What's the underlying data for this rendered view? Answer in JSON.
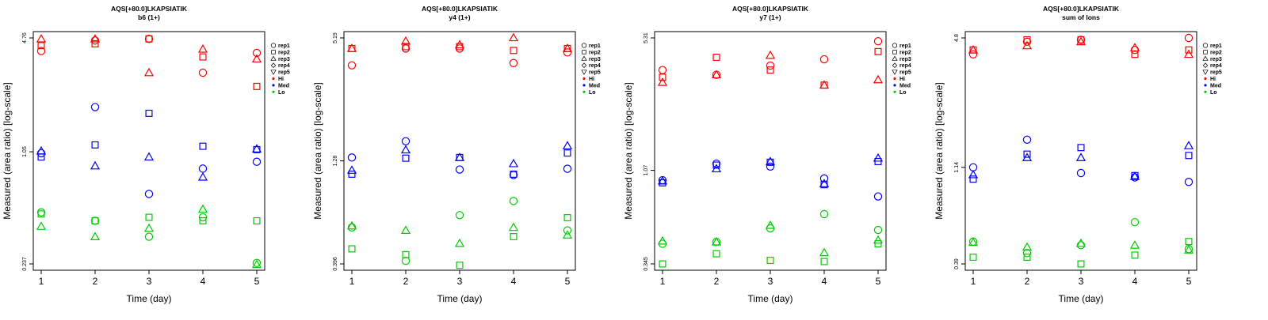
{
  "colors": {
    "Hi": "#ff0000",
    "Med": "#0000ff",
    "Lo": "#00cc00"
  },
  "legend": {
    "entries": [
      {
        "label": "rep1",
        "marker": "circle"
      },
      {
        "label": "rep2",
        "marker": "square"
      },
      {
        "label": "rep3",
        "marker": "triangle-up"
      },
      {
        "label": "rep4",
        "marker": "diamond"
      },
      {
        "label": "rep5",
        "marker": "triangle-down"
      },
      {
        "label": "Hi",
        "marker": "dot",
        "color": "#ff0000"
      },
      {
        "label": "Med",
        "marker": "dot",
        "color": "#0000ff"
      },
      {
        "label": "Lo",
        "marker": "dot",
        "color": "#00cc00"
      }
    ]
  },
  "chart_data": [
    {
      "type": "scatter",
      "title": "AQS[+80.0]LKAPSIATIK",
      "subtitle": "b6 (1+)",
      "xlabel": "Time (day)",
      "ylabel": "Measured (area ratio) [log-scale]",
      "x_ticks": [
        1,
        2,
        3,
        4,
        5
      ],
      "y_scale": "log",
      "y_ticks": [
        0.237,
        1.05,
        4.76
      ],
      "ylim": [
        0.237,
        4.76
      ],
      "grid": false,
      "legend_position": "right",
      "series": [
        {
          "name": "rep1",
          "group": "Hi",
          "marker": "circle",
          "x": [
            1,
            2,
            3,
            4,
            5
          ],
          "y": [
            4.0,
            4.6,
            4.7,
            3.0,
            3.9
          ]
        },
        {
          "name": "rep2",
          "group": "Hi",
          "marker": "square",
          "x": [
            1,
            2,
            3,
            4,
            5
          ],
          "y": [
            4.3,
            4.4,
            4.7,
            3.7,
            2.5
          ]
        },
        {
          "name": "rep3",
          "group": "Hi",
          "marker": "triangle-up",
          "x": [
            1,
            2,
            3,
            4,
            5
          ],
          "y": [
            4.7,
            4.7,
            3.0,
            4.1,
            3.6
          ]
        },
        {
          "name": "rep1",
          "group": "Med",
          "marker": "circle",
          "x": [
            1,
            2,
            3,
            4,
            5
          ],
          "y": [
            1.03,
            1.9,
            0.6,
            0.84,
            0.92
          ]
        },
        {
          "name": "rep2",
          "group": "Med",
          "marker": "square",
          "x": [
            1,
            2,
            3,
            4,
            5
          ],
          "y": [
            0.98,
            1.15,
            1.75,
            1.13,
            1.08
          ]
        },
        {
          "name": "rep3",
          "group": "Med",
          "marker": "triangle-up",
          "x": [
            1,
            2,
            3,
            4,
            5
          ],
          "y": [
            1.06,
            0.87,
            0.98,
            0.75,
            1.09
          ]
        },
        {
          "name": "rep1",
          "group": "Lo",
          "marker": "circle",
          "x": [
            1,
            2,
            3,
            4,
            5
          ],
          "y": [
            0.47,
            0.42,
            0.34,
            0.44,
            0.24
          ]
        },
        {
          "name": "rep2",
          "group": "Lo",
          "marker": "square",
          "x": [
            1,
            2,
            3,
            4,
            5
          ],
          "y": [
            0.46,
            0.42,
            0.44,
            0.42,
            0.42
          ]
        },
        {
          "name": "rep3",
          "group": "Lo",
          "marker": "triangle-up",
          "x": [
            1,
            2,
            3,
            4,
            5
          ],
          "y": [
            0.39,
            0.34,
            0.38,
            0.49,
            0.235
          ]
        }
      ]
    },
    {
      "type": "scatter",
      "title": "AQS[+80.0]LKAPSIATIK",
      "subtitle": "y4 (1+)",
      "xlabel": "Time (day)",
      "ylabel": "Measured (area ratio) [log-scale]",
      "x_ticks": [
        1,
        2,
        3,
        4,
        5
      ],
      "y_scale": "log",
      "y_ticks": [
        0.396,
        1.28,
        5.19
      ],
      "ylim": [
        0.396,
        5.19
      ],
      "grid": false,
      "legend_position": "right",
      "series": [
        {
          "name": "rep1",
          "group": "Hi",
          "marker": "circle",
          "x": [
            1,
            2,
            3,
            4,
            5
          ],
          "y": [
            3.8,
            4.6,
            4.6,
            3.9,
            4.4
          ]
        },
        {
          "name": "rep2",
          "group": "Hi",
          "marker": "square",
          "x": [
            1,
            2,
            3,
            4,
            5
          ],
          "y": [
            4.6,
            4.7,
            4.7,
            4.5,
            4.6
          ]
        },
        {
          "name": "rep3",
          "group": "Hi",
          "marker": "triangle-up",
          "x": [
            1,
            2,
            3,
            4,
            5
          ],
          "y": [
            4.6,
            5.0,
            4.8,
            5.2,
            4.6
          ]
        },
        {
          "name": "rep1",
          "group": "Med",
          "marker": "circle",
          "x": [
            1,
            2,
            3,
            4,
            5
          ],
          "y": [
            1.33,
            1.6,
            1.16,
            1.09,
            1.17
          ]
        },
        {
          "name": "rep2",
          "group": "Med",
          "marker": "square",
          "x": [
            1,
            2,
            3,
            4,
            5
          ],
          "y": [
            1.1,
            1.32,
            1.33,
            1.1,
            1.4
          ]
        },
        {
          "name": "rep3",
          "group": "Med",
          "marker": "triangle-up",
          "x": [
            1,
            2,
            3,
            4,
            5
          ],
          "y": [
            1.15,
            1.45,
            1.33,
            1.24,
            1.52
          ]
        },
        {
          "name": "rep1",
          "group": "Lo",
          "marker": "circle",
          "x": [
            1,
            2,
            3,
            4,
            5
          ],
          "y": [
            0.6,
            0.41,
            0.69,
            0.81,
            0.58
          ]
        },
        {
          "name": "rep2",
          "group": "Lo",
          "marker": "square",
          "x": [
            1,
            2,
            3,
            4,
            5
          ],
          "y": [
            0.47,
            0.44,
            0.39,
            0.54,
            0.67
          ]
        },
        {
          "name": "rep3",
          "group": "Lo",
          "marker": "triangle-up",
          "x": [
            1,
            2,
            3,
            4,
            5
          ],
          "y": [
            0.61,
            0.58,
            0.5,
            0.6,
            0.55
          ]
        }
      ]
    },
    {
      "type": "scatter",
      "title": "AQS[+80.0]LKAPSIATIK",
      "subtitle": "y7 (1+)",
      "xlabel": "Time (day)",
      "ylabel": "Measured (area ratio) [log-scale]",
      "x_ticks": [
        1,
        2,
        3,
        4,
        5
      ],
      "y_scale": "log",
      "y_ticks": [
        0.345,
        1.07,
        5.31
      ],
      "ylim": [
        0.345,
        5.31
      ],
      "grid": false,
      "legend_position": "right",
      "series": [
        {
          "name": "rep1",
          "group": "Hi",
          "marker": "circle",
          "x": [
            1,
            2,
            3,
            4,
            5
          ],
          "y": [
            3.6,
            3.4,
            3.8,
            4.1,
            5.1
          ]
        },
        {
          "name": "rep2",
          "group": "Hi",
          "marker": "square",
          "x": [
            1,
            2,
            3,
            4,
            5
          ],
          "y": [
            3.3,
            4.2,
            3.6,
            3.0,
            4.5
          ]
        },
        {
          "name": "rep3",
          "group": "Hi",
          "marker": "triangle-up",
          "x": [
            1,
            2,
            3,
            4,
            5
          ],
          "y": [
            3.1,
            3.4,
            4.3,
            3.0,
            3.2
          ]
        },
        {
          "name": "rep1",
          "group": "Med",
          "marker": "circle",
          "x": [
            1,
            2,
            3,
            4,
            5
          ],
          "y": [
            0.95,
            1.16,
            1.12,
            0.97,
            0.78
          ]
        },
        {
          "name": "rep2",
          "group": "Med",
          "marker": "square",
          "x": [
            1,
            2,
            3,
            4,
            5
          ],
          "y": [
            0.92,
            1.14,
            1.18,
            0.9,
            1.19
          ]
        },
        {
          "name": "rep3",
          "group": "Med",
          "marker": "triangle-up",
          "x": [
            1,
            2,
            3,
            4,
            5
          ],
          "y": [
            0.94,
            1.09,
            1.19,
            0.91,
            1.24
          ]
        },
        {
          "name": "rep1",
          "group": "Lo",
          "marker": "circle",
          "x": [
            1,
            2,
            3,
            4,
            5
          ],
          "y": [
            0.44,
            0.45,
            0.53,
            0.63,
            0.52
          ]
        },
        {
          "name": "rep2",
          "group": "Lo",
          "marker": "square",
          "x": [
            1,
            2,
            3,
            4,
            5
          ],
          "y": [
            0.345,
            0.39,
            0.36,
            0.355,
            0.44
          ]
        },
        {
          "name": "rep3",
          "group": "Lo",
          "marker": "triangle-up",
          "x": [
            1,
            2,
            3,
            4,
            5
          ],
          "y": [
            0.455,
            0.45,
            0.55,
            0.395,
            0.46
          ]
        }
      ]
    },
    {
      "type": "scatter",
      "title": "AQS[+80.0]LKAPSIATIK",
      "subtitle": "sum of Ions",
      "xlabel": "Time (day)",
      "ylabel": "Measured (area ratio) [log-scale]",
      "x_ticks": [
        1,
        2,
        3,
        4,
        5
      ],
      "y_scale": "log",
      "y_ticks": [
        0.39,
        1.14,
        4.8
      ],
      "ylim": [
        0.39,
        4.8
      ],
      "grid": false,
      "legend_position": "right",
      "series": [
        {
          "name": "rep1",
          "group": "Hi",
          "marker": "circle",
          "x": [
            1,
            2,
            3,
            4,
            5
          ],
          "y": [
            4.0,
            4.6,
            4.7,
            4.2,
            4.8
          ]
        },
        {
          "name": "rep2",
          "group": "Hi",
          "marker": "square",
          "x": [
            1,
            2,
            3,
            4,
            5
          ],
          "y": [
            4.2,
            4.7,
            4.7,
            4.0,
            4.2
          ]
        },
        {
          "name": "rep3",
          "group": "Hi",
          "marker": "triangle-up",
          "x": [
            1,
            2,
            3,
            4,
            5
          ],
          "y": [
            4.2,
            4.4,
            4.6,
            4.3,
            4.0
          ]
        },
        {
          "name": "rep1",
          "group": "Med",
          "marker": "circle",
          "x": [
            1,
            2,
            3,
            4,
            5
          ],
          "y": [
            1.14,
            1.55,
            1.07,
            1.02,
            0.97
          ]
        },
        {
          "name": "rep2",
          "group": "Med",
          "marker": "square",
          "x": [
            1,
            2,
            3,
            4,
            5
          ],
          "y": [
            1.0,
            1.32,
            1.42,
            1.04,
            1.3
          ]
        },
        {
          "name": "rep3",
          "group": "Med",
          "marker": "triangle-up",
          "x": [
            1,
            2,
            3,
            4,
            5
          ],
          "y": [
            1.05,
            1.27,
            1.27,
            1.03,
            1.45
          ]
        },
        {
          "name": "rep1",
          "group": "Lo",
          "marker": "circle",
          "x": [
            1,
            2,
            3,
            4,
            5
          ],
          "y": [
            0.5,
            0.44,
            0.48,
            0.62,
            0.46
          ]
        },
        {
          "name": "rep2",
          "group": "Lo",
          "marker": "square",
          "x": [
            1,
            2,
            3,
            4,
            5
          ],
          "y": [
            0.42,
            0.42,
            0.39,
            0.43,
            0.5
          ]
        },
        {
          "name": "rep3",
          "group": "Lo",
          "marker": "triangle-up",
          "x": [
            1,
            2,
            3,
            4,
            5
          ],
          "y": [
            0.495,
            0.47,
            0.49,
            0.48,
            0.455
          ]
        }
      ]
    }
  ]
}
